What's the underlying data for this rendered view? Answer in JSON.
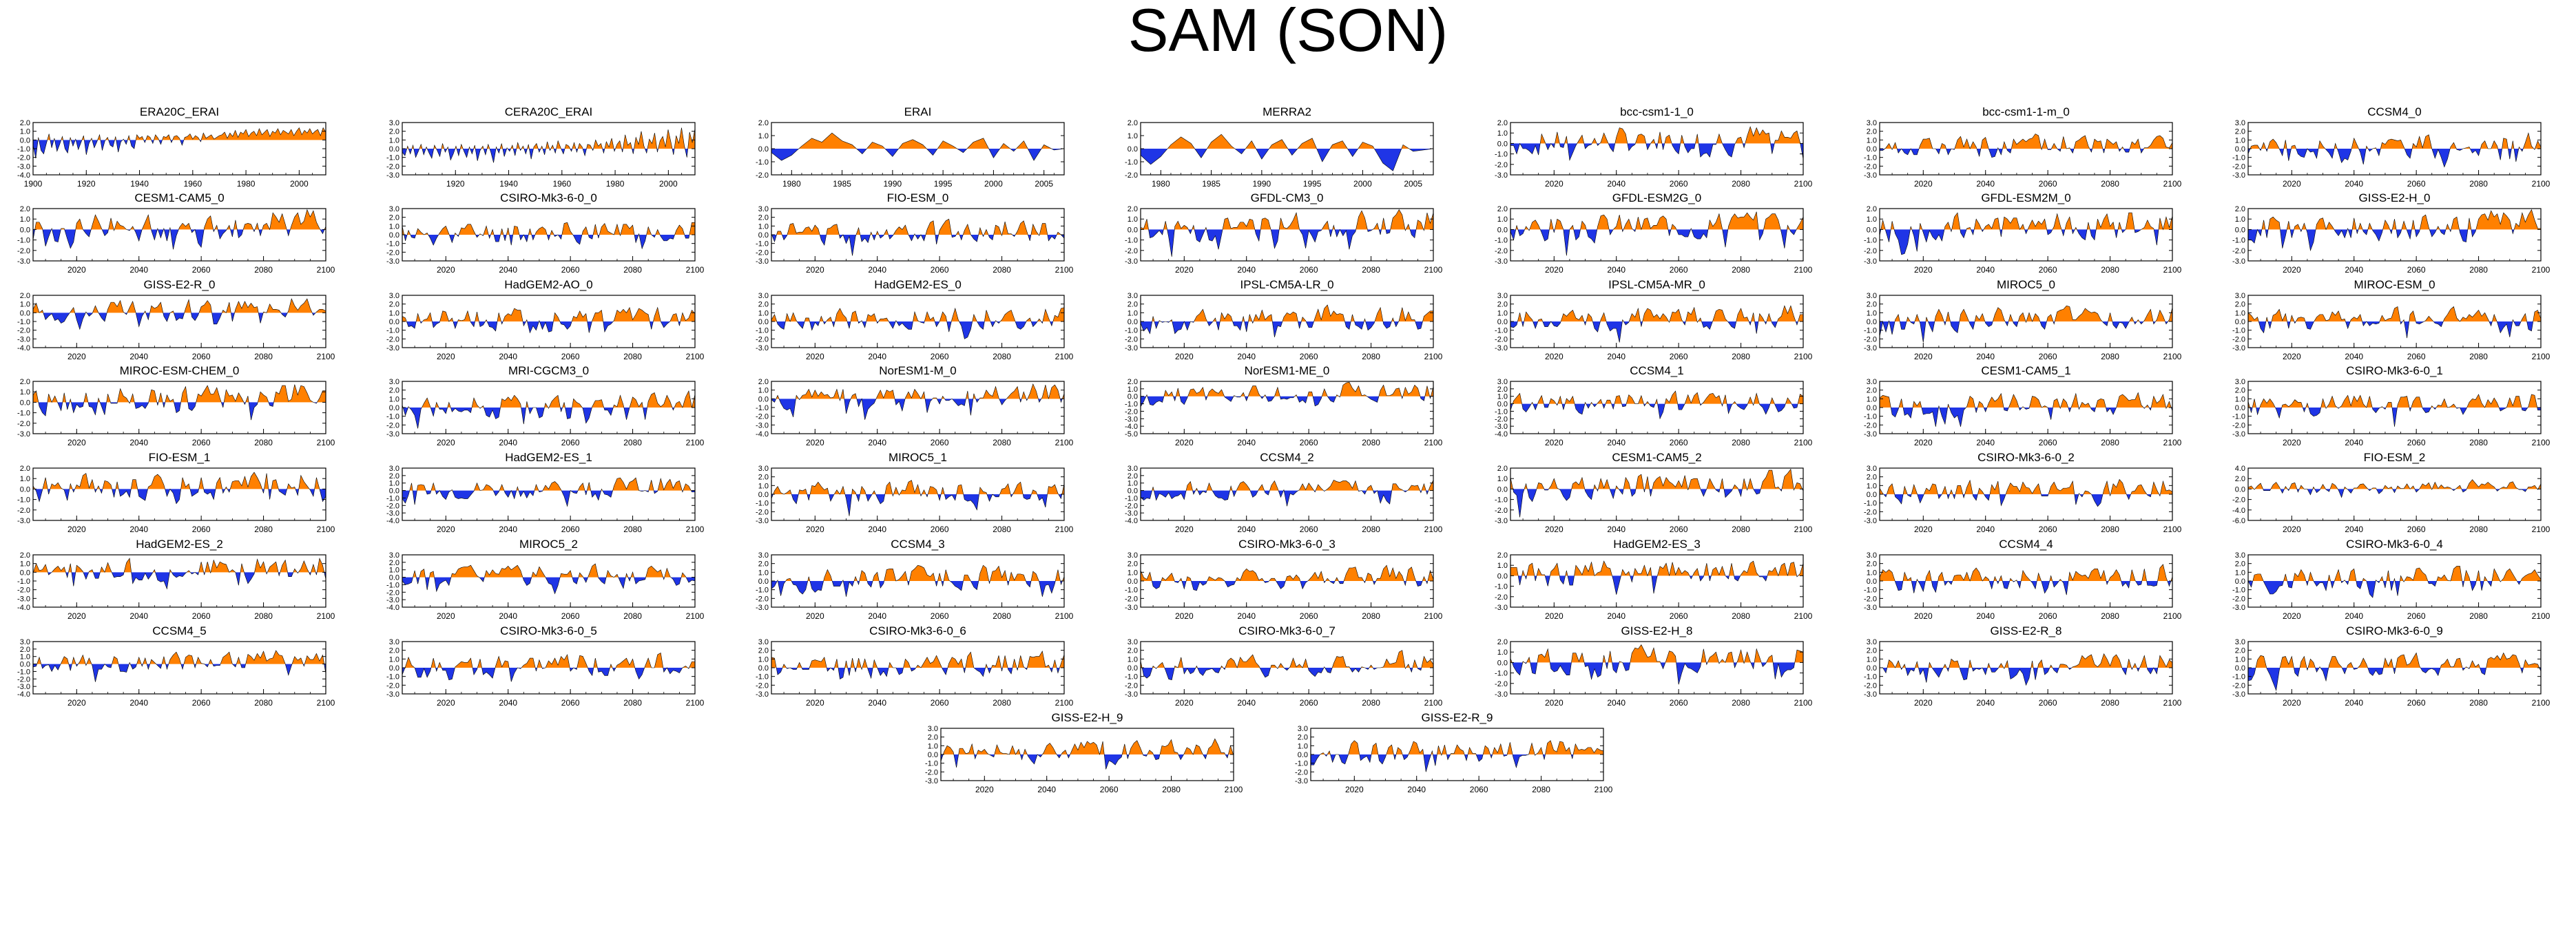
{
  "figure": {
    "title": "SAM (SON)"
  },
  "colors": {
    "positive": "#ff8000",
    "negative": "#1f35e6",
    "axis": "#000000"
  },
  "chart_data": [
    {
      "type": "area",
      "title": "ERA20C_ERAI",
      "x_range": [
        1900,
        2010
      ],
      "x_ticks": [
        "1900",
        "1920",
        "1940",
        "1960",
        "1980",
        "2000"
      ],
      "y_ticks": [
        "2.0",
        "1.0",
        "0.0",
        "-1.0",
        "-2.0",
        "-3.0",
        "-4.0"
      ],
      "y_range": [
        -4,
        2
      ],
      "values": [
        -0.6,
        -2.1,
        0.3,
        -1.2,
        -1.6,
        -0.4,
        0.7,
        -0.9,
        0.2,
        -1.3,
        -0.5,
        0.4,
        -1.0,
        -1.5,
        0.3,
        -0.7,
        0.1,
        -1.1,
        -0.3,
        0.5,
        -1.7,
        -0.4,
        0.2,
        -0.9,
        -0.2,
        0.6,
        -1.2,
        -0.1,
        0.3,
        -0.6,
        -0.8,
        0.4,
        -1.4,
        -0.2,
        0.1,
        -0.5,
        0.5,
        -0.7,
        -1.0,
        0.6,
        0.2,
        0.4,
        -0.3,
        0.5,
        0.3,
        -0.4,
        0.6,
        0.2,
        -0.5,
        0.4,
        0.3,
        0.6,
        -0.3,
        0.4,
        0.5,
        0.2,
        -0.6,
        0.3,
        0.4,
        0.7,
        0.1,
        0.5,
        0.3,
        -0.2,
        0.8,
        0.2,
        0.4,
        0.6,
        0.1,
        0.3,
        0.5,
        0.6,
        0.9,
        0.2,
        0.8,
        0.4,
        1.1,
        0.3,
        0.9,
        0.7,
        1.2,
        0.4,
        0.8,
        1.0,
        0.5,
        1.3,
        0.6,
        0.9,
        1.2,
        0.4,
        1.0,
        0.8,
        1.3,
        0.6,
        1.1,
        0.9,
        0.7,
        1.2,
        0.5,
        1.0,
        1.4,
        0.6,
        1.1,
        0.8,
        1.3,
        0.7,
        1.0,
        1.2,
        0.5,
        1.4,
        0.9
      ]
    },
    {
      "type": "area",
      "title": "CERA20C_ERAI",
      "x_range": [
        1900,
        2010
      ],
      "x_ticks": [
        "1920",
        "1940",
        "1960",
        "1980",
        "2000"
      ],
      "y_ticks": [
        "3.0",
        "2.0",
        "1.0",
        "0.0",
        "-1.0",
        "-2.0",
        "-3.0"
      ],
      "y_range": [
        -3,
        3
      ],
      "values": [
        -0.4,
        -0.8,
        0.3,
        -0.6,
        0.4,
        -1.0,
        -0.3,
        0.5,
        -0.7,
        0.2,
        -0.5,
        -1.1,
        0.4,
        -0.2,
        -0.9,
        0.6,
        -0.4,
        0.2,
        -1.3,
        -0.6,
        0.3,
        -0.8,
        0.5,
        -0.3,
        -1.0,
        0.2,
        -0.6,
        0.4,
        -1.4,
        -0.2,
        0.3,
        -0.7,
        0.5,
        -0.4,
        -1.6,
        0.2,
        -0.5,
        0.6,
        -0.9,
        0.1,
        -0.3,
        0.4,
        -0.8,
        0.7,
        -0.2,
        0.3,
        -0.6,
        0.5,
        -1.2,
        0.2,
        0.6,
        -0.4,
        0.3,
        -0.7,
        0.8,
        -0.2,
        0.4,
        -0.5,
        0.9,
        0.1,
        -0.6,
        0.5,
        0.3,
        -0.3,
        0.7,
        -0.4,
        0.6,
        0.2,
        -0.8,
        0.5,
        0.4,
        -0.2,
        1.0,
        0.3,
        0.6,
        -0.5,
        0.8,
        0.2,
        1.2,
        -0.3,
        0.5,
        0.9,
        -0.4,
        1.6,
        0.4,
        0.7,
        -0.6,
        1.3,
        0.5,
        2.0,
        0.3,
        -0.5,
        1.1,
        0.6,
        1.8,
        -0.4,
        0.9,
        1.4,
        0.2,
        2.2,
        0.8,
        -0.7,
        1.5,
        0.6,
        2.4,
        0.4,
        -1.0,
        1.9,
        0.7,
        2.3
      ]
    },
    {
      "type": "area",
      "title": "ERAI",
      "x_range": [
        1978,
        2007
      ],
      "x_ticks": [
        "1980",
        "1985",
        "1990",
        "1995",
        "2000",
        "2005"
      ],
      "y_ticks": [
        "2.0",
        "1.0",
        "0.0",
        "-1.0",
        "-2.0"
      ],
      "y_range": [
        -2,
        2
      ],
      "values": [
        -0.3,
        -0.9,
        -0.5,
        0.2,
        0.8,
        0.5,
        1.2,
        0.6,
        0.3,
        -0.4,
        0.5,
        0.2,
        -0.6,
        0.4,
        0.7,
        0.3,
        -0.5,
        0.6,
        0.2,
        -0.3,
        0.5,
        0.8,
        -0.7,
        0.4,
        -0.2,
        0.6,
        -0.9,
        0.3,
        -0.1,
        0.0
      ]
    },
    {
      "type": "area",
      "title": "MERRA2",
      "x_range": [
        1978,
        2007
      ],
      "x_ticks": [
        "1980",
        "1985",
        "1990",
        "1995",
        "2000",
        "2005"
      ],
      "y_ticks": [
        "2.0",
        "1.0",
        "0.0",
        "-1.0",
        "-2.0"
      ],
      "y_range": [
        -2,
        2
      ],
      "values": [
        -0.5,
        -1.2,
        -0.6,
        0.3,
        0.9,
        0.4,
        -0.7,
        0.5,
        1.1,
        0.2,
        -0.4,
        0.6,
        -0.8,
        0.3,
        0.7,
        -0.5,
        0.4,
        0.8,
        -1.0,
        0.3,
        0.6,
        -0.6,
        0.5,
        0.2,
        -1.1,
        -1.7,
        0.3,
        -0.2,
        -0.1,
        0.0
      ]
    }
  ],
  "model_panels": {
    "x_range": [
      2006,
      2100
    ],
    "x_ticks": [
      "2020",
      "2040",
      "2060",
      "2080",
      "2100"
    ],
    "titles": [
      "bcc-csm1-1_0",
      "bcc-csm1-1-m_0",
      "CCSM4_0",
      "CESM1-CAM5_0",
      "CSIRO-Mk3-6-0_0",
      "FIO-ESM_0",
      "GFDL-CM3_0",
      "GFDL-ESM2G_0",
      "GFDL-ESM2M_0",
      "GISS-E2-H_0",
      "GISS-E2-R_0",
      "HadGEM2-AO_0",
      "HadGEM2-ES_0",
      "IPSL-CM5A-LR_0",
      "IPSL-CM5A-MR_0",
      "MIROC5_0",
      "MIROC-ESM_0",
      "MIROC-ESM-CHEM_0",
      "MRI-CGCM3_0",
      "NorESM1-M_0",
      "NorESM1-ME_0",
      "CCSM4_1",
      "CESM1-CAM5_1",
      "CSIRO-Mk3-6-0_1",
      "FIO-ESM_1",
      "HadGEM2-ES_1",
      "MIROC5_1",
      "CCSM4_2",
      "CESM1-CAM5_2",
      "CSIRO-Mk3-6-0_2",
      "FIO-ESM_2",
      "HadGEM2-ES_2",
      "MIROC5_2",
      "CCSM4_3",
      "CSIRO-Mk3-6-0_3",
      "HadGEM2-ES_3",
      "CCSM4_4",
      "CSIRO-Mk3-6-0_4",
      "CCSM4_5",
      "CSIRO-Mk3-6-0_5",
      "CSIRO-Mk3-6-0_6",
      "CSIRO-Mk3-6-0_7",
      "GISS-E2-H_8",
      "GISS-E2-R_8",
      "CSIRO-Mk3-6-0_9",
      "GISS-E2-H_9",
      "GISS-E2-R_9"
    ],
    "y_ticks": [
      [
        "2.0",
        "1.0",
        "0.0",
        "-1.0",
        "-2.0",
        "-3.0"
      ],
      [
        "3.0",
        "2.0",
        "1.0",
        "0.0",
        "-1.0",
        "-2.0",
        "-3.0"
      ],
      [
        "3.0",
        "2.0",
        "1.0",
        "0.0",
        "-1.0",
        "-2.0",
        "-3.0"
      ],
      [
        "2.0",
        "1.0",
        "0.0",
        "-1.0",
        "-2.0",
        "-3.0"
      ],
      [
        "3.0",
        "2.0",
        "1.0",
        "0.0",
        "-1.0",
        "-2.0",
        "-3.0"
      ],
      [
        "3.0",
        "2.0",
        "1.0",
        "0.0",
        "-1.0",
        "-2.0",
        "-3.0"
      ],
      [
        "2.0",
        "1.0",
        "0.0",
        "-1.0",
        "-2.0",
        "-3.0"
      ],
      [
        "2.0",
        "1.0",
        "0.0",
        "-1.0",
        "-2.0",
        "-3.0"
      ],
      [
        "2.0",
        "1.0",
        "0.0",
        "-1.0",
        "-2.0",
        "-3.0"
      ],
      [
        "2.0",
        "1.0",
        "0.0",
        "-1.0",
        "-2.0",
        "-3.0"
      ],
      [
        "2.0",
        "1.0",
        "0.0",
        "-1.0",
        "-2.0",
        "-3.0",
        "-4.0"
      ],
      [
        "3.0",
        "2.0",
        "1.0",
        "0.0",
        "-1.0",
        "-2.0",
        "-3.0"
      ],
      [
        "3.0",
        "2.0",
        "1.0",
        "0.0",
        "-1.0",
        "-2.0",
        "-3.0"
      ],
      [
        "3.0",
        "2.0",
        "1.0",
        "0.0",
        "-1.0",
        "-2.0",
        "-3.0"
      ],
      [
        "3.0",
        "2.0",
        "1.0",
        "0.0",
        "-1.0",
        "-2.0",
        "-3.0"
      ],
      [
        "3.0",
        "2.0",
        "1.0",
        "0.0",
        "-1.0",
        "-2.0",
        "-3.0"
      ],
      [
        "3.0",
        "2.0",
        "1.0",
        "0.0",
        "-1.0",
        "-2.0",
        "-3.0"
      ],
      [
        "2.0",
        "1.0",
        "0.0",
        "-1.0",
        "-2.0",
        "-3.0"
      ],
      [
        "3.0",
        "2.0",
        "1.0",
        "0.0",
        "-1.0",
        "-2.0",
        "-3.0"
      ],
      [
        "2.0",
        "1.0",
        "0.0",
        "-1.0",
        "-2.0",
        "-3.0",
        "-4.0"
      ],
      [
        "2.0",
        "1.0",
        "0.0",
        "-1.0",
        "-2.0",
        "-3.0",
        "-4.0",
        "-5.0"
      ],
      [
        "3.0",
        "2.0",
        "1.0",
        "0.0",
        "-1.0",
        "-2.0",
        "-3.0",
        "-4.0"
      ],
      [
        "3.0",
        "2.0",
        "1.0",
        "0.0",
        "-1.0",
        "-2.0",
        "-3.0"
      ],
      [
        "3.0",
        "2.0",
        "1.0",
        "0.0",
        "-1.0",
        "-2.0",
        "-3.0"
      ],
      [
        "2.0",
        "1.0",
        "0.0",
        "-1.0",
        "-2.0",
        "-3.0"
      ],
      [
        "3.0",
        "2.0",
        "1.0",
        "0.0",
        "-1.0",
        "-2.0",
        "-3.0",
        "-4.0"
      ],
      [
        "3.0",
        "2.0",
        "1.0",
        "0.0",
        "-1.0",
        "-2.0",
        "-3.0"
      ],
      [
        "3.0",
        "2.0",
        "1.0",
        "0.0",
        "-1.0",
        "-2.0",
        "-3.0",
        "-4.0"
      ],
      [
        "2.0",
        "1.0",
        "0.0",
        "-1.0",
        "-2.0",
        "-3.0"
      ],
      [
        "3.0",
        "2.0",
        "1.0",
        "0.0",
        "-1.0",
        "-2.0",
        "-3.0"
      ],
      [
        "4.0",
        "2.0",
        "0.0",
        "-2.0",
        "-4.0",
        "-6.0"
      ],
      [
        "2.0",
        "1.0",
        "0.0",
        "-1.0",
        "-2.0",
        "-3.0",
        "-4.0"
      ],
      [
        "3.0",
        "2.0",
        "1.0",
        "0.0",
        "-1.0",
        "-2.0",
        "-3.0",
        "-4.0"
      ],
      [
        "3.0",
        "2.0",
        "1.0",
        "0.0",
        "-1.0",
        "-2.0",
        "-3.0"
      ],
      [
        "3.0",
        "2.0",
        "1.0",
        "0.0",
        "-1.0",
        "-2.0",
        "-3.0"
      ],
      [
        "2.0",
        "1.0",
        "0.0",
        "-1.0",
        "-2.0",
        "-3.0"
      ],
      [
        "3.0",
        "2.0",
        "1.0",
        "0.0",
        "-1.0",
        "-2.0",
        "-3.0"
      ],
      [
        "3.0",
        "2.0",
        "1.0",
        "0.0",
        "-1.0",
        "-2.0",
        "-3.0"
      ],
      [
        "3.0",
        "2.0",
        "1.0",
        "0.0",
        "-1.0",
        "-2.0",
        "-3.0",
        "-4.0"
      ],
      [
        "3.0",
        "2.0",
        "1.0",
        "0.0",
        "-1.0",
        "-2.0",
        "-3.0"
      ],
      [
        "3.0",
        "2.0",
        "1.0",
        "0.0",
        "-1.0",
        "-2.0",
        "-3.0"
      ],
      [
        "3.0",
        "2.0",
        "1.0",
        "0.0",
        "-1.0",
        "-2.0",
        "-3.0"
      ],
      [
        "2.0",
        "1.0",
        "0.0",
        "-1.0",
        "-2.0",
        "-3.0"
      ],
      [
        "3.0",
        "2.0",
        "1.0",
        "0.0",
        "-1.0",
        "-2.0",
        "-3.0"
      ],
      [
        "3.0",
        "2.0",
        "1.0",
        "0.0",
        "-1.0",
        "-2.0",
        "-3.0"
      ],
      [
        "3.0",
        "2.0",
        "1.0",
        "0.0",
        "-1.0",
        "-2.0",
        "-3.0"
      ],
      [
        "3.0",
        "2.0",
        "1.0",
        "0.0",
        "-1.0",
        "-2.0",
        "-3.0"
      ]
    ]
  }
}
